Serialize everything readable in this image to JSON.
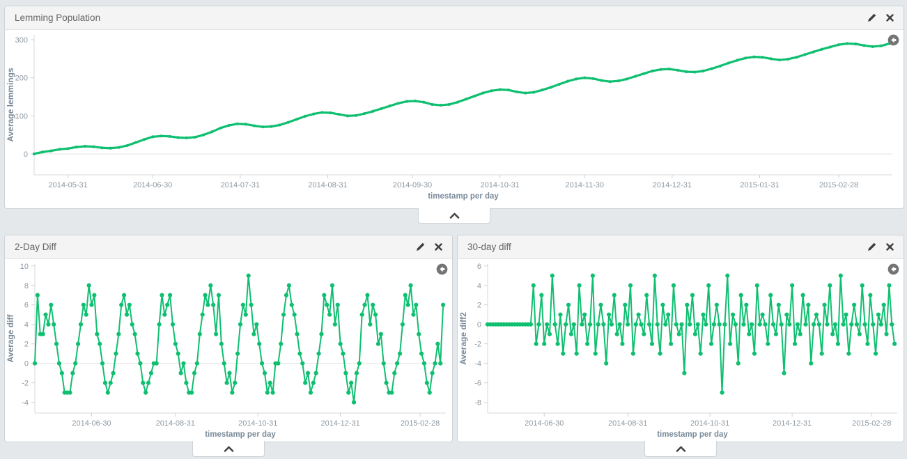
{
  "page": {
    "background_color": "#e4e8eb",
    "accent_color": "#0fbf70"
  },
  "panels": [
    {
      "title": "Lemming Population",
      "icons": [
        "edit-pencil-icon",
        "close-x-icon",
        "back-arrow-circle-icon",
        "collapse-chevron-up"
      ]
    },
    {
      "title": "2-Day Diff",
      "icons": [
        "edit-pencil-icon",
        "close-x-icon",
        "back-arrow-circle-icon",
        "collapse-chevron-up"
      ]
    },
    {
      "title": "30-day diff",
      "icons": [
        "edit-pencil-icon",
        "close-x-icon",
        "back-arrow-circle-icon",
        "collapse-chevron-up"
      ]
    }
  ],
  "chart_data": [
    {
      "type": "line",
      "title": "Lemming Population",
      "xlabel": "timestamp per day",
      "ylabel": "Average lemmings",
      "legend": "off",
      "grid": "zero-line-only",
      "line_color": "#0fbf70",
      "xlim": [
        0,
        304
      ],
      "ylim": [
        -55,
        313
      ],
      "y_ticks": [
        0,
        100,
        200,
        300
      ],
      "x_ticks": [
        {
          "d": 12,
          "label": "2014-05-31"
        },
        {
          "d": 42,
          "label": "2014-06-30"
        },
        {
          "d": 73,
          "label": "2014-07-31"
        },
        {
          "d": 104,
          "label": "2014-08-31"
        },
        {
          "d": 134,
          "label": "2014-09-30"
        },
        {
          "d": 165,
          "label": "2014-10-31"
        },
        {
          "d": 195,
          "label": "2014-11-30"
        },
        {
          "d": 226,
          "label": "2014-12-31"
        },
        {
          "d": 257,
          "label": "2015-01-31"
        },
        {
          "d": 285,
          "label": "2015-02-28"
        }
      ],
      "x_step_days": 3,
      "values": [
        0,
        5,
        8,
        12,
        14,
        18,
        20,
        19,
        16,
        15,
        17,
        22,
        30,
        38,
        45,
        47,
        46,
        43,
        42,
        44,
        50,
        58,
        68,
        75,
        79,
        78,
        74,
        71,
        72,
        76,
        83,
        91,
        99,
        105,
        109,
        108,
        104,
        100,
        101,
        106,
        112,
        119,
        126,
        133,
        138,
        139,
        136,
        130,
        128,
        130,
        136,
        144,
        152,
        160,
        166,
        169,
        168,
        163,
        160,
        162,
        168,
        175,
        183,
        191,
        197,
        200,
        198,
        193,
        190,
        192,
        197,
        204,
        211,
        218,
        222,
        223,
        220,
        216,
        215,
        218,
        224,
        231,
        239,
        246,
        252,
        255,
        254,
        250,
        247,
        249,
        254,
        261,
        268,
        275,
        281,
        287,
        290,
        289,
        285,
        282,
        284,
        290
      ]
    },
    {
      "type": "line",
      "title": "2-Day Diff",
      "xlabel": "timestamp per day",
      "ylabel": "Average diff",
      "legend": "off",
      "grid": "zero-line-only",
      "line_color": "#0fbf70",
      "xlim": [
        0,
        304
      ],
      "ylim": [
        -5.1,
        10.2
      ],
      "y_ticks": [
        -4,
        -2,
        0,
        2,
        4,
        6,
        8,
        10
      ],
      "x_ticks": [
        {
          "d": 42,
          "label": "2014-06-30"
        },
        {
          "d": 104,
          "label": "2014-08-31"
        },
        {
          "d": 165,
          "label": "2014-10-31"
        },
        {
          "d": 226,
          "label": "2014-12-31"
        },
        {
          "d": 285,
          "label": "2015-02-28"
        }
      ],
      "x_step_days": 2,
      "values": [
        0,
        7,
        3,
        3,
        5,
        4,
        6,
        4,
        2,
        0,
        -1,
        -3,
        -3,
        -3,
        -1,
        0,
        2,
        4,
        6,
        5,
        8,
        6,
        7,
        3,
        2,
        0,
        -2,
        -3,
        -2,
        -1,
        1,
        3,
        6,
        7,
        5,
        6,
        4,
        3,
        1,
        0,
        -2,
        -3,
        -2,
        -1,
        0,
        0,
        4,
        7,
        5,
        6,
        7,
        4,
        2,
        1,
        -1,
        0,
        -2,
        -3,
        -3,
        -1,
        0,
        3,
        5,
        7,
        6,
        8,
        6,
        3,
        7,
        2,
        0,
        -2,
        -1,
        -3,
        -2,
        1,
        4,
        6,
        5,
        9,
        6,
        3,
        4,
        2,
        0,
        -1,
        -3,
        -2,
        -3,
        0,
        0,
        2,
        5,
        7,
        8,
        6,
        5,
        3,
        1,
        0,
        -2,
        -1,
        -3,
        -2,
        -1,
        1,
        3,
        7,
        6,
        5,
        8,
        4,
        6,
        2,
        1,
        -1,
        -3,
        -2,
        -4,
        -1,
        0,
        5,
        6,
        7,
        4,
        6,
        5,
        2,
        3,
        0,
        -2,
        -3,
        -3,
        -1,
        0,
        1,
        4,
        7,
        6,
        8,
        5,
        6,
        3,
        1,
        0,
        -2,
        -3,
        -1,
        0,
        2,
        0,
        6
      ]
    },
    {
      "type": "line",
      "title": "30-day diff",
      "xlabel": "timestamp per day",
      "ylabel": "Average diff2",
      "legend": "off",
      "grid": "zero-line-only",
      "line_color": "#0fbf70",
      "xlim": [
        0,
        304
      ],
      "ylim": [
        -9.1,
        6.2
      ],
      "y_ticks": [
        -8,
        -6,
        -4,
        -2,
        0,
        2,
        4,
        6
      ],
      "x_ticks": [
        {
          "d": 42,
          "label": "2014-06-30"
        },
        {
          "d": 104,
          "label": "2014-08-31"
        },
        {
          "d": 165,
          "label": "2014-10-31"
        },
        {
          "d": 226,
          "label": "2014-12-31"
        },
        {
          "d": 285,
          "label": "2015-02-28"
        }
      ],
      "x_step_days": 2,
      "values": [
        0,
        0,
        0,
        0,
        0,
        0,
        0,
        0,
        0,
        0,
        0,
        0,
        0,
        0,
        0,
        0,
        0,
        4,
        -2,
        0,
        3,
        -2,
        0,
        -1,
        5,
        0,
        -2,
        1,
        -3,
        0,
        2,
        -1,
        0,
        -3,
        4,
        0,
        1,
        -2,
        0,
        5,
        -3,
        0,
        2,
        0,
        -4,
        1,
        0,
        3,
        -1,
        0,
        -2,
        2,
        0,
        4,
        -3,
        0,
        1,
        0,
        -1,
        3,
        0,
        -2,
        5,
        0,
        -3,
        2,
        0,
        1,
        -2,
        4,
        0,
        -1,
        0,
        -5,
        2,
        0,
        3,
        -1,
        0,
        -3,
        1,
        0,
        4,
        -2,
        0,
        2,
        0,
        -7,
        0,
        5,
        -2,
        1,
        0,
        -4,
        3,
        0,
        2,
        -1,
        0,
        -3,
        4,
        0,
        1,
        0,
        -2,
        3,
        0,
        -1,
        2,
        0,
        -5,
        1,
        0,
        4,
        -2,
        0,
        -1,
        3,
        0,
        2,
        -4,
        0,
        1,
        0,
        -3,
        2,
        0,
        4,
        -1,
        0,
        -2,
        5,
        0,
        1,
        -3,
        0,
        2,
        0,
        -1,
        4,
        0,
        -2,
        3,
        0,
        -3,
        1,
        0,
        2,
        -1,
        4,
        0,
        -2
      ]
    }
  ]
}
